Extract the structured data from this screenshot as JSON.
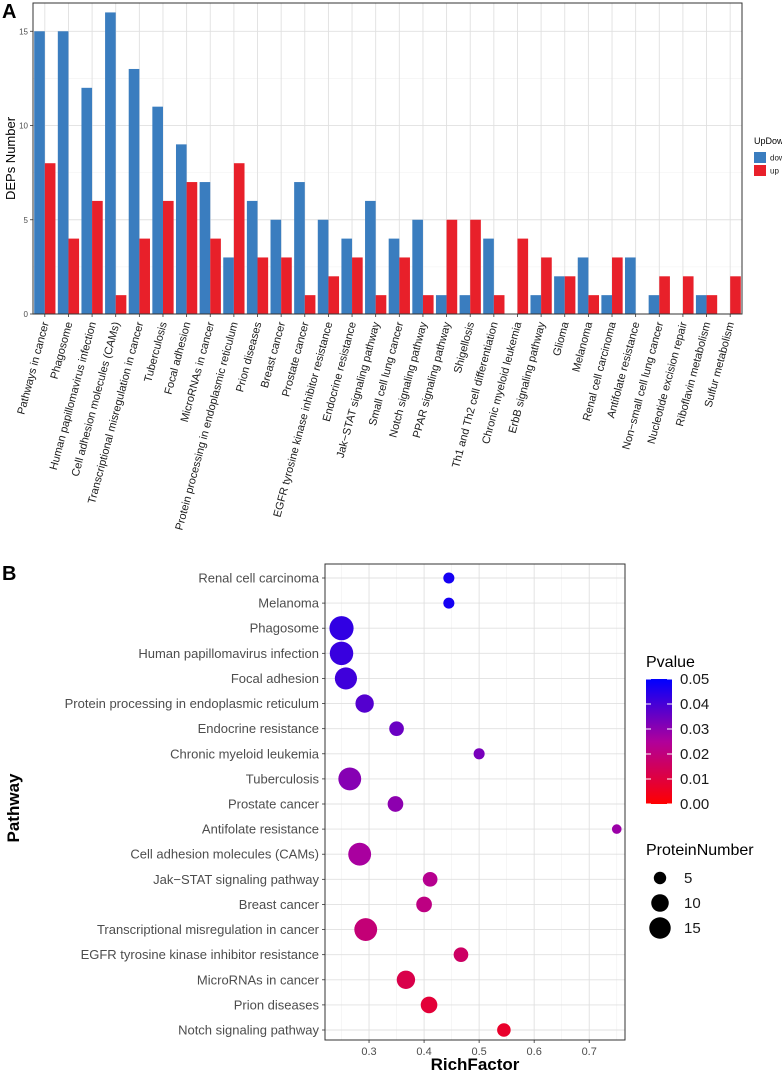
{
  "chart_data": [
    {
      "panel": "A",
      "type": "bar",
      "title": "",
      "xlabel": "",
      "ylabel": "DEPs Number",
      "ylim": [
        0,
        16.5
      ],
      "yticks": [
        0,
        5,
        10,
        15
      ],
      "grid": true,
      "legend_title": "UpDown",
      "legend_position": "right",
      "categories": [
        "Pathways in cancer",
        "Phagosome",
        "Human papillomavirus infection",
        "Cell adhesion molecules (CAMs)",
        "Transcriptional misregulation in cancer",
        "Tuberculosis",
        "Focal adhesion",
        "MicroRNAs in cancer",
        "Protein processing in endoplasmic reticulum",
        "Prion diseases",
        "Breast cancer",
        "Prostate cancer",
        "EGFR tyrosine kinase inhibitor resistance",
        "Endocrine resistance",
        "Jak−STAT signaling pathway",
        "Small cell lung cancer",
        "Notch signaling pathway",
        "PPAR signaling pathway",
        "Shigellosis",
        "Th1 and Th2 cell differentiation",
        "Chronic myeloid leukemia",
        "ErbB signaling pathway",
        "Glioma",
        "Melanoma",
        "Renal cell carcinoma",
        "Antifolate resistance",
        "Non−small cell lung cancer",
        "Nucleotide excision repair",
        "Riboflavin metabolism",
        "Sulfur metabolism"
      ],
      "series": [
        {
          "name": "down",
          "color": "#3a7dbf",
          "values": [
            15,
            15,
            12,
            16,
            13,
            11,
            9,
            7,
            3,
            6,
            5,
            7,
            5,
            4,
            6,
            4,
            5,
            1,
            1,
            4,
            0,
            1,
            2,
            3,
            1,
            3,
            1,
            0,
            1,
            0
          ]
        },
        {
          "name": "up",
          "color": "#e8202a",
          "values": [
            8,
            4,
            6,
            1,
            4,
            6,
            7,
            4,
            8,
            3,
            3,
            1,
            2,
            3,
            1,
            3,
            1,
            5,
            5,
            1,
            4,
            3,
            2,
            1,
            3,
            0,
            2,
            2,
            1,
            2
          ]
        }
      ]
    },
    {
      "panel": "B",
      "type": "scatter",
      "title": "",
      "xlabel": "RichFactor",
      "ylabel": "Pathway",
      "xlim": [
        0.22,
        0.765
      ],
      "xticks": [
        0.3,
        0.4,
        0.5,
        0.6,
        0.7
      ],
      "grid": true,
      "color_legend": {
        "title": "Pvalue",
        "min": 0.0,
        "max": 0.05,
        "low_color": "#ff0000",
        "high_color": "#0000ff",
        "ticks": [
          "0.05",
          "0.04",
          "0.03",
          "0.02",
          "0.01",
          "0.00"
        ]
      },
      "size_legend": {
        "title": "ProteinNumber",
        "values": [
          5,
          10,
          15
        ]
      },
      "points": [
        {
          "pathway": "Renal cell carcinoma",
          "richfactor": 0.445,
          "pvalue": 0.047,
          "protein_number": 4
        },
        {
          "pathway": "Melanoma",
          "richfactor": 0.445,
          "pvalue": 0.047,
          "protein_number": 4
        },
        {
          "pathway": "Phagosome",
          "richfactor": 0.25,
          "pvalue": 0.043,
          "protein_number": 19
        },
        {
          "pathway": "Human papillomavirus infection",
          "richfactor": 0.25,
          "pvalue": 0.042,
          "protein_number": 18
        },
        {
          "pathway": "Focal adhesion",
          "richfactor": 0.258,
          "pvalue": 0.041,
          "protein_number": 16
        },
        {
          "pathway": "Protein processing in endoplasmic reticulum",
          "richfactor": 0.292,
          "pvalue": 0.038,
          "protein_number": 11
        },
        {
          "pathway": "Endocrine resistance",
          "richfactor": 0.35,
          "pvalue": 0.035,
          "protein_number": 7
        },
        {
          "pathway": "Chronic myeloid leukemia",
          "richfactor": 0.5,
          "pvalue": 0.033,
          "protein_number": 4
        },
        {
          "pathway": "Tuberculosis",
          "richfactor": 0.265,
          "pvalue": 0.031,
          "protein_number": 17
        },
        {
          "pathway": "Prostate cancer",
          "richfactor": 0.348,
          "pvalue": 0.03,
          "protein_number": 8
        },
        {
          "pathway": "Antifolate resistance",
          "richfactor": 0.75,
          "pvalue": 0.028,
          "protein_number": 3
        },
        {
          "pathway": "Cell adhesion molecules (CAMs)",
          "richfactor": 0.283,
          "pvalue": 0.026,
          "protein_number": 17
        },
        {
          "pathway": "Jak−STAT signaling pathway",
          "richfactor": 0.411,
          "pvalue": 0.023,
          "protein_number": 7
        },
        {
          "pathway": "Breast cancer",
          "richfactor": 0.4,
          "pvalue": 0.021,
          "protein_number": 8
        },
        {
          "pathway": "Transcriptional misregulation in cancer",
          "richfactor": 0.294,
          "pvalue": 0.019,
          "protein_number": 17
        },
        {
          "pathway": "EGFR tyrosine kinase inhibitor resistance",
          "richfactor": 0.467,
          "pvalue": 0.016,
          "protein_number": 7
        },
        {
          "pathway": "MicroRNAs in cancer",
          "richfactor": 0.367,
          "pvalue": 0.012,
          "protein_number": 11
        },
        {
          "pathway": "Prion diseases",
          "richfactor": 0.409,
          "pvalue": 0.009,
          "protein_number": 9
        },
        {
          "pathway": "Notch signaling pathway",
          "richfactor": 0.545,
          "pvalue": 0.007,
          "protein_number": 6
        }
      ]
    }
  ]
}
